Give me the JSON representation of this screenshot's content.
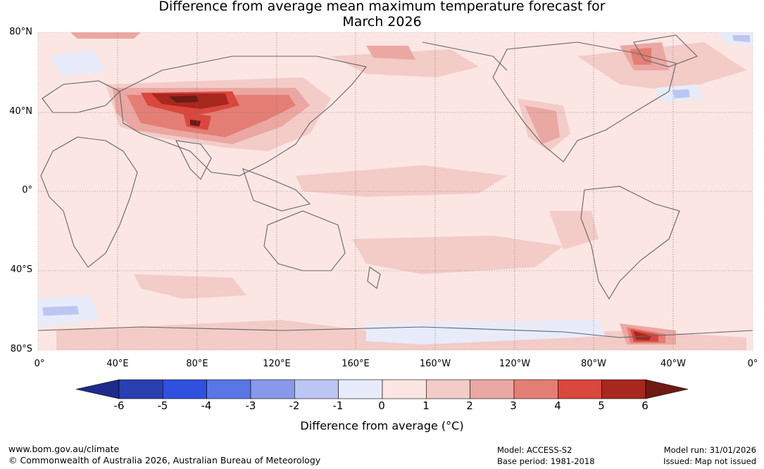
{
  "title": {
    "line1": "Difference from average mean maximum temperature forecast for",
    "line2": "March 2026"
  },
  "map": {
    "lat_labels": [
      "80°N",
      "40°N",
      "0°",
      "40°S",
      "80°S"
    ],
    "lon_labels": [
      "0°",
      "40°E",
      "80°E",
      "120°E",
      "160°E",
      "160°W",
      "120°W",
      "80°W",
      "40°W",
      "0°"
    ],
    "anomaly_regions": [
      {
        "name": "central-asia-warm",
        "anomaly_c": 5.5
      },
      {
        "name": "tibet-warm",
        "anomaly_c": 4.5
      },
      {
        "name": "antarctic-peninsula-warm",
        "anomaly_c": 5.5
      },
      {
        "name": "north-canada-warm",
        "anomaly_c": 4.5
      },
      {
        "name": "mexico-warm",
        "anomaly_c": 2.5
      },
      {
        "name": "south-pacific-cool",
        "anomaly_c": -0.5
      },
      {
        "name": "southern-ocean-cool",
        "anomaly_c": -1.5
      },
      {
        "name": "north-atlantic-cool",
        "anomaly_c": -1.5
      }
    ]
  },
  "colorbar": {
    "ticks": [
      "-6",
      "-5",
      "-4",
      "-3",
      "-2",
      "-1",
      "0",
      "1",
      "2",
      "3",
      "4",
      "5",
      "6"
    ],
    "colors": [
      "#1e2a8c",
      "#2a3fb0",
      "#3050e0",
      "#5a76e6",
      "#8898ea",
      "#bcc6f2",
      "#e8ecfa",
      "#fbe6e4",
      "#f3cbc7",
      "#eba7a2",
      "#e47e74",
      "#d9473d",
      "#a8271f",
      "#701a15"
    ],
    "label": "Difference from average (°C)"
  },
  "footer": {
    "url": "www.bom.gov.au/climate",
    "copyright": "© Commonwealth of Australia 2026, Australian Bureau of Meteorology",
    "model": "Model: ACCESS-S2",
    "base_period": "Base period: 1981-2018",
    "model_run": "Model run: 31/01/2026",
    "issued": "Issued: Map not issued"
  }
}
